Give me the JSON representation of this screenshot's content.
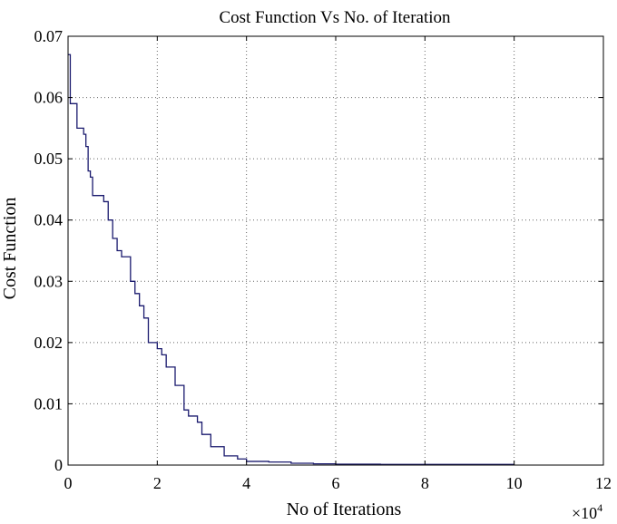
{
  "chart_data": {
    "type": "line",
    "title": "Cost Function Vs No. of Iteration",
    "xlabel": "No of Iterations",
    "ylabel": "Cost Function",
    "x_multiplier_label": "×10",
    "x_multiplier_exponent": "4",
    "xlim": [
      0,
      12
    ],
    "ylim": [
      0,
      0.07
    ],
    "x_ticks": [
      0,
      2,
      4,
      6,
      8,
      10,
      12
    ],
    "x_tick_labels": [
      "0",
      "2",
      "4",
      "6",
      "8",
      "10",
      "12"
    ],
    "y_ticks": [
      0,
      0.01,
      0.02,
      0.03,
      0.04,
      0.05,
      0.06,
      0.07
    ],
    "y_tick_labels": [
      "0",
      "0.01",
      "0.02",
      "0.03",
      "0.04",
      "0.05",
      "0.06",
      "0.07"
    ],
    "grid": true,
    "line_color": "#1a1a6e",
    "series": [
      {
        "x": [
          0,
          0.05,
          0.1,
          0.2,
          0.35,
          0.4,
          0.45,
          0.5,
          0.55,
          0.6,
          0.8,
          0.9,
          1.0,
          1.1,
          1.2,
          1.4,
          1.5,
          1.6,
          1.7,
          1.8,
          2.0,
          2.1,
          2.2,
          2.4,
          2.6,
          2.7,
          2.9,
          3.0,
          3.2,
          3.5,
          3.8,
          4.0,
          4.5,
          5.0,
          5.5,
          6.0,
          7.0,
          8.0,
          9.0,
          10.0
        ],
        "y": [
          0.067,
          0.059,
          0.059,
          0.055,
          0.054,
          0.052,
          0.048,
          0.047,
          0.044,
          0.044,
          0.043,
          0.04,
          0.037,
          0.035,
          0.034,
          0.03,
          0.028,
          0.026,
          0.024,
          0.02,
          0.019,
          0.018,
          0.016,
          0.013,
          0.009,
          0.008,
          0.007,
          0.005,
          0.003,
          0.0015,
          0.001,
          0.0006,
          0.0005,
          0.0003,
          0.0002,
          0.00015,
          0.0001,
          0.0001,
          0.0001,
          0.0001
        ]
      }
    ]
  }
}
